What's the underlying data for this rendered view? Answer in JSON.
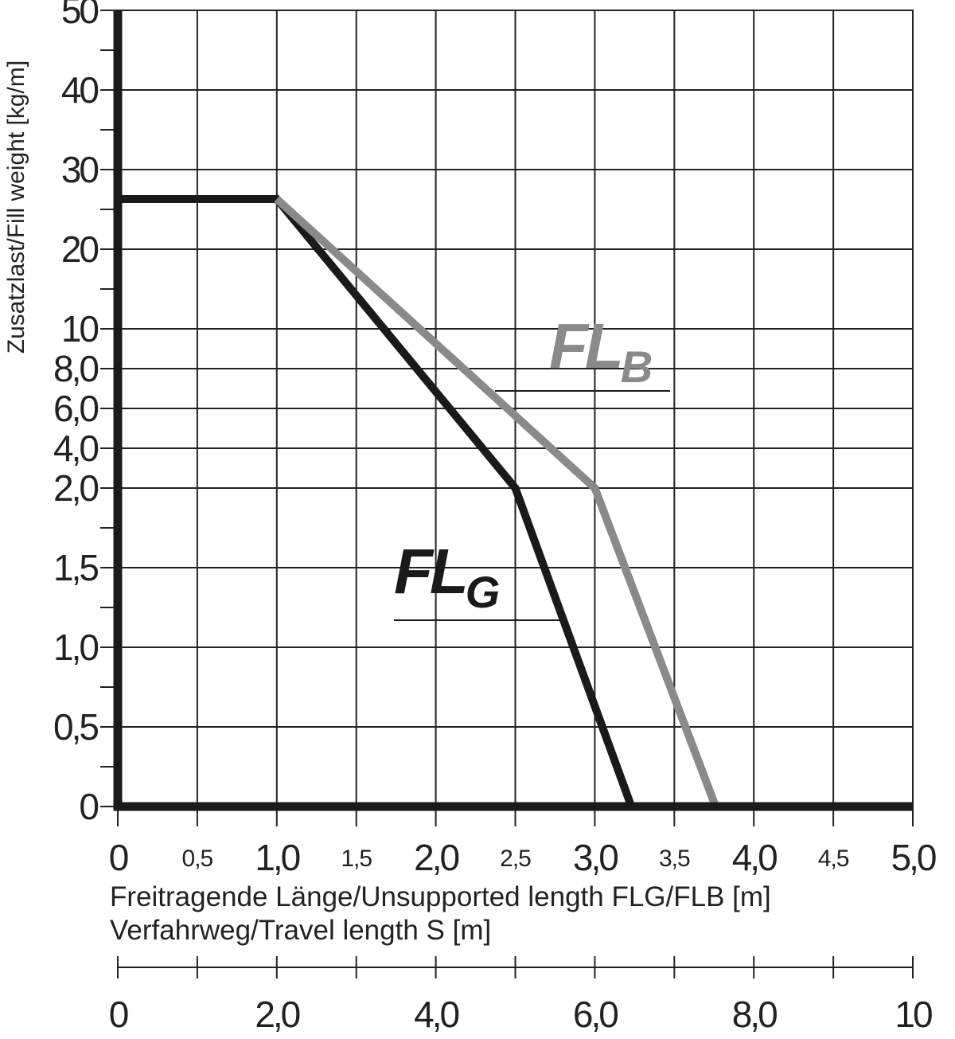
{
  "chart_data": {
    "type": "line",
    "y_label": "Zusatzlast/Fill weight [kg/m]",
    "x_label": "Freitragende Länge/Unsupported length FLG/FLB [m]",
    "x2_label": "Verfahrweg/Travel length S [m]",
    "xlim": [
      0,
      5
    ],
    "xticks": [
      0,
      {
        "value": 0.5,
        "label": "0,5"
      },
      {
        "value": 1.0,
        "label": "1,0"
      },
      {
        "value": 1.5,
        "label": "1,5"
      },
      {
        "value": 2.0,
        "label": "2,0"
      },
      {
        "value": 2.5,
        "label": "2,5"
      },
      {
        "value": 3.0,
        "label": "3,0"
      },
      {
        "value": 3.5,
        "label": "3,5"
      },
      {
        "value": 4.0,
        "label": "4,0"
      },
      {
        "value": 4.5,
        "label": "4,5"
      },
      {
        "value": 5.0,
        "label": "5,0"
      }
    ],
    "x2lim": [
      0,
      10
    ],
    "x2ticks": [
      0,
      {
        "value": 2,
        "label": "2,0"
      },
      {
        "value": 4,
        "label": "4,0"
      },
      {
        "value": 6,
        "label": "6,0"
      },
      {
        "value": 8,
        "label": "8,0"
      },
      10
    ],
    "ylim": [
      0,
      50
    ],
    "yticks": [
      0,
      {
        "value": 0.5,
        "label": "0,5"
      },
      {
        "value": 1.0,
        "label": "1,0"
      },
      {
        "value": 1.5,
        "label": "1,5"
      },
      {
        "value": 2.0,
        "label": "2,0"
      },
      {
        "value": 4.0,
        "label": "4,0"
      },
      {
        "value": 6.0,
        "label": "6,0"
      },
      {
        "value": 8.0,
        "label": "8,0"
      },
      10,
      20,
      30,
      40,
      50
    ],
    "grid": true,
    "series": [
      {
        "label": {
          "main": "FL",
          "sub": "G"
        },
        "color": "#1a1a1a",
        "x": [
          0,
          1.0,
          2.5,
          3.23
        ],
        "values": [
          26.3,
          26.3,
          2.0,
          0
        ]
      },
      {
        "label": {
          "main": "FL",
          "sub": "B"
        },
        "color": "#8a8a8a",
        "x": [
          1.0,
          3.0,
          3.76
        ],
        "values": [
          26.3,
          2.0,
          0
        ]
      }
    ]
  }
}
